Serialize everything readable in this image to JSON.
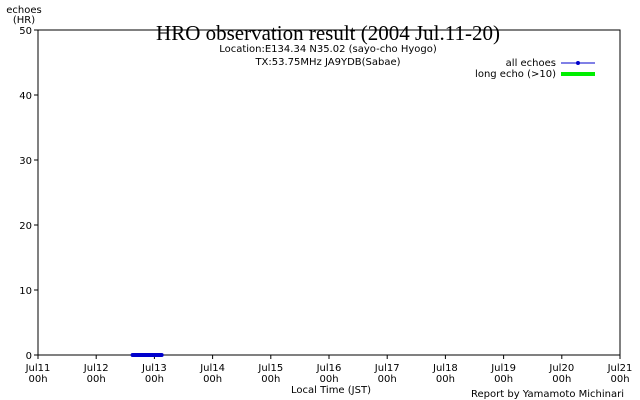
{
  "chart_data": {
    "type": "line",
    "title": "HRO observation result (2004 Jul.11-20)",
    "subtitle": [
      "Location:E134.34 N35.02 (sayo-cho Hyogo)",
      "TX:53.75MHz JA9YDB(Sabae)"
    ],
    "ylabel": [
      "echoes",
      "(HR)"
    ],
    "xlabel": "Local Time (JST)",
    "annotation": "Report by Yamamoto Michinari",
    "x": [
      "Jul12 15h",
      "Jul12 16h",
      "Jul12 17h",
      "Jul12 18h",
      "Jul12 19h",
      "Jul12 20h",
      "Jul12 21h",
      "Jul12 22h",
      "Jul12 23h",
      "Jul13 00h",
      "Jul13 01h",
      "Jul13 02h",
      "Jul13 03h"
    ],
    "series": [
      {
        "name": "all echoes",
        "color": "#0000cc",
        "values": [
          0,
          0,
          0,
          0,
          0,
          0,
          0,
          0,
          0,
          0,
          0,
          0,
          0
        ]
      },
      {
        "name": "long echo (>10)",
        "color": "#00ee00",
        "values": [
          null,
          null,
          null,
          null,
          null,
          null,
          null,
          null,
          null,
          null,
          null,
          null,
          null
        ]
      }
    ],
    "xlim": [
      "Jul11 00h",
      "Jul21 00h"
    ],
    "xticks": [
      [
        "Jul11",
        "00h"
      ],
      [
        "Jul12",
        "00h"
      ],
      [
        "Jul13",
        "00h"
      ],
      [
        "Jul14",
        "00h"
      ],
      [
        "Jul15",
        "00h"
      ],
      [
        "Jul16",
        "00h"
      ],
      [
        "Jul17",
        "00h"
      ],
      [
        "Jul18",
        "00h"
      ],
      [
        "Jul19",
        "00h"
      ],
      [
        "Jul20",
        "00h"
      ],
      [
        "Jul21",
        "00h"
      ]
    ],
    "ylim": [
      0,
      50
    ],
    "yticks": [
      0,
      10,
      20,
      30,
      40,
      50
    ],
    "legend": "upper right"
  }
}
